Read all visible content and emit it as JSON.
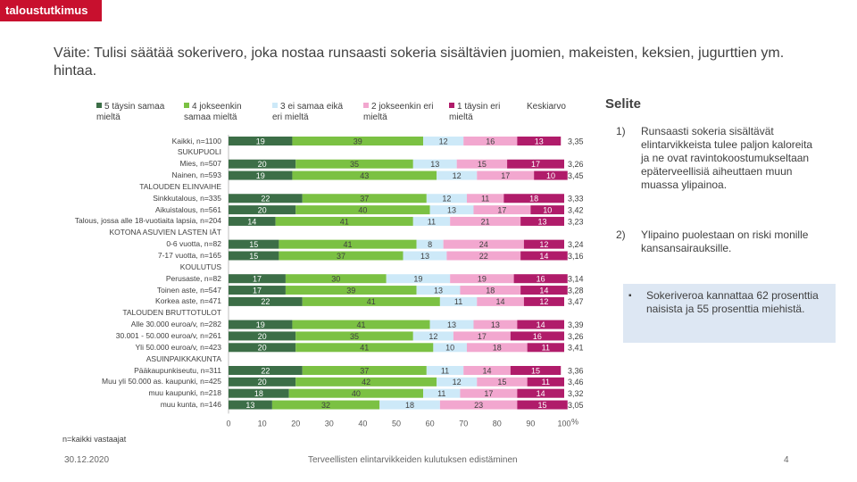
{
  "brand": "taloustutkimus",
  "title": "Väite: Tulisi säätää sokerivero, joka nostaa runsaasti sokeria sisältävien juomien, makeisten, keksien, jugurttien ym. hintaa.",
  "legend": [
    {
      "label": "5 täysin samaa mieltä",
      "color": "#3c6e47"
    },
    {
      "label": "4 jokseenkin samaa mieltä",
      "color": "#7bc143"
    },
    {
      "label": "3 ei samaa eikä eri mieltä",
      "color": "#cde9f8"
    },
    {
      "label": "2 jokseenkin eri mieltä",
      "color": "#f2a7cf"
    },
    {
      "label": "1 täysin eri mieltä",
      "color": "#b01c6a"
    }
  ],
  "legend_mean_label": "Keskiarvo",
  "chart_data": {
    "type": "bar",
    "stacked": true,
    "orientation": "horizontal",
    "xlim": [
      0,
      100
    ],
    "xticks": [
      0,
      10,
      20,
      30,
      40,
      50,
      60,
      70,
      80,
      90,
      100
    ],
    "x_unit": "%",
    "categories": [
      "Kaikki, n=1100",
      "SUKUPUOLI",
      "Mies, n=507",
      "Nainen, n=593",
      "TALOUDEN ELINVAIHE",
      "Sinkkutalous, n=335",
      "Aikuistalous, n=561",
      "Talous, jossa alle 18-vuotiaita lapsia, n=204",
      "KOTONA ASUVIEN LASTEN IÄT",
      "0-6 vuotta, n=82",
      "7-17 vuotta, n=165",
      "KOULUTUS",
      "Perusaste, n=82",
      "Toinen aste, n=547",
      "Korkea aste, n=471",
      "TALOUDEN BRUTTOTULOT",
      "Alle 30.000 euroa/v, n=282",
      "30.001 - 50.000 euroa/v, n=261",
      "Yli 50.000 euroa/v, n=423",
      "ASUINPAIKKAKUNTA",
      "Pääkaupunkiseutu, n=311",
      "Muu yli 50.000 as. kaupunki, n=425",
      "muu kaupunki, n=218",
      "muu kunta, n=146"
    ],
    "rows": [
      {
        "values": [
          19,
          39,
          12,
          16,
          13
        ],
        "mean": "3,35"
      },
      null,
      {
        "values": [
          20,
          35,
          13,
          15,
          17
        ],
        "mean": "3,26"
      },
      {
        "values": [
          19,
          43,
          12,
          17,
          10
        ],
        "mean": "3,45"
      },
      null,
      {
        "values": [
          22,
          37,
          12,
          11,
          18
        ],
        "mean": "3,33"
      },
      {
        "values": [
          20,
          40,
          13,
          17,
          10
        ],
        "mean": "3,42"
      },
      {
        "values": [
          14,
          41,
          11,
          21,
          13
        ],
        "mean": "3,23"
      },
      null,
      {
        "values": [
          15,
          41,
          8,
          24,
          12
        ],
        "mean": "3,24"
      },
      {
        "values": [
          15,
          37,
          13,
          22,
          14
        ],
        "mean": "3,16"
      },
      null,
      {
        "values": [
          17,
          30,
          19,
          19,
          16
        ],
        "mean": "3,14"
      },
      {
        "values": [
          17,
          39,
          13,
          18,
          14
        ],
        "mean": "3,28"
      },
      {
        "values": [
          22,
          41,
          11,
          14,
          12
        ],
        "mean": "3,47"
      },
      null,
      {
        "values": [
          19,
          41,
          13,
          13,
          14
        ],
        "mean": "3,39"
      },
      {
        "values": [
          20,
          35,
          12,
          17,
          16
        ],
        "mean": "3,26"
      },
      {
        "values": [
          20,
          41,
          10,
          18,
          11
        ],
        "mean": "3,41"
      },
      null,
      {
        "values": [
          22,
          37,
          11,
          14,
          15
        ],
        "mean": "3,36"
      },
      {
        "values": [
          20,
          42,
          12,
          15,
          11
        ],
        "mean": "3,46"
      },
      {
        "values": [
          18,
          40,
          11,
          17,
          14
        ],
        "mean": "3,32"
      },
      {
        "values": [
          13,
          32,
          18,
          23,
          15
        ],
        "mean": "3,05"
      }
    ]
  },
  "selite": {
    "heading": "Selite",
    "items": [
      {
        "num": "1)",
        "text": "Runsaasti sokeria sisältävät elintarvikkeista tulee paljon kaloreita ja ne ovat ravintokoostumukseltaan epäterveellisiä aiheuttaen muun muassa ylipainoa."
      },
      {
        "num": "2)",
        "text": "Ylipaino puolestaan on riski monille kansansairauksille."
      }
    ],
    "box_bullet": "▪",
    "box_text": "Sokeriveroa kannattaa 62 prosenttia naisista ja 55 prosenttia miehistä."
  },
  "note": "n=kaikki vastaajat",
  "date": "30.12.2020",
  "footer": "Terveellisten elintarvikkeiden kulutuksen edistäminen",
  "page": "4"
}
